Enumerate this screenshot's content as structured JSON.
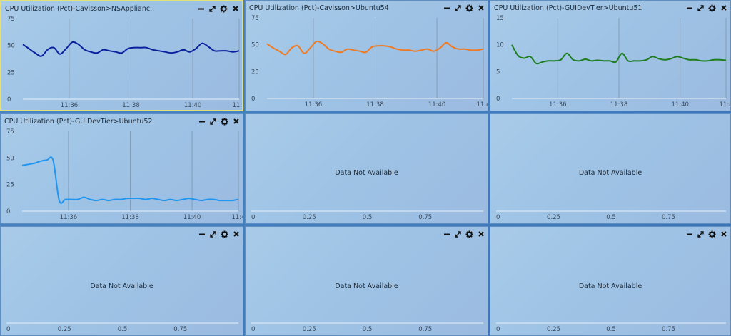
{
  "controls": {
    "minimize": "minimize-icon",
    "expand": "expand-icon",
    "settings": "gear-icon",
    "close": "close-icon"
  },
  "panels": [
    {
      "title": "CPU Utilization (Pct)-Cavisson>NSApplianc..",
      "nodata": ""
    },
    {
      "title": "CPU Utilization (Pct)-Cavisson>Ubuntu54",
      "nodata": ""
    },
    {
      "title": "CPU Utilization (Pct)-GUIDevTier>Ubuntu51",
      "nodata": ""
    },
    {
      "title": "CPU Utilization (Pct)-GUIDevTier>Ubuntu52",
      "nodata": ""
    },
    {
      "title": "",
      "nodata": "Data Not Available"
    },
    {
      "title": "",
      "nodata": "Data Not Available"
    },
    {
      "title": "",
      "nodata": "Data Not Available"
    },
    {
      "title": "",
      "nodata": "Data Not Available"
    },
    {
      "title": "",
      "nodata": "Data Not Available"
    }
  ],
  "chart_data": [
    {
      "type": "line",
      "title": "CPU Utilization (Pct)-Cavisson>NSApplianc..",
      "color": "#0a1f9e",
      "x_ticks": [
        "11:36",
        "11:38",
        "11:40",
        "11:4"
      ],
      "ylim": [
        0,
        75
      ],
      "y_ticks": [
        "0",
        "25",
        "50",
        "75"
      ],
      "x": [
        0,
        0.4,
        0.8,
        1.2,
        1.6,
        2.0,
        2.4,
        2.8,
        3.2,
        3.6,
        4.0,
        4.4,
        4.8,
        5.2,
        5.6,
        6.0,
        6.4,
        6.8,
        7.2,
        7.6,
        8.0,
        8.4,
        8.8,
        9.2,
        9.6,
        10.0,
        10.4,
        10.8,
        11.2,
        11.6,
        12.0,
        12.4,
        12.8,
        13.2,
        13.6,
        14.0
      ],
      "values": [
        51,
        47,
        43,
        40,
        46,
        48,
        42,
        47,
        53,
        51,
        46,
        44,
        43,
        46,
        45,
        44,
        43,
        47,
        48,
        48,
        48,
        46,
        45,
        44,
        43,
        44,
        46,
        44,
        47,
        52,
        49,
        45,
        45,
        45,
        44,
        45
      ]
    },
    {
      "type": "line",
      "title": "CPU Utilization (Pct)-Cavisson>Ubuntu54",
      "color": "#f07a22",
      "x_ticks": [
        "11:36",
        "11:38",
        "11:40",
        "11:4"
      ],
      "ylim": [
        0,
        75
      ],
      "y_ticks": [
        "0",
        "25",
        "50",
        "75"
      ],
      "x": [
        0,
        0.4,
        0.8,
        1.2,
        1.6,
        2.0,
        2.4,
        2.8,
        3.2,
        3.6,
        4.0,
        4.4,
        4.8,
        5.2,
        5.6,
        6.0,
        6.4,
        6.8,
        7.2,
        7.6,
        8.0,
        8.4,
        8.8,
        9.2,
        9.6,
        10.0,
        10.4,
        10.8,
        11.2,
        11.6,
        12.0,
        12.4,
        12.8,
        13.2,
        13.6,
        14.0
      ],
      "values": [
        51,
        47,
        44,
        41,
        47,
        49,
        42,
        47,
        53,
        51,
        46,
        44,
        43,
        46,
        45,
        44,
        43,
        48,
        49,
        49,
        48,
        46,
        45,
        45,
        44,
        45,
        46,
        44,
        47,
        52,
        48,
        46,
        46,
        45,
        45,
        46
      ]
    },
    {
      "type": "line",
      "title": "CPU Utilization (Pct)-GUIDevTier>Ubuntu51",
      "color": "#1e7d1e",
      "x_ticks": [
        "11:36",
        "11:38",
        "11:40",
        "11:4"
      ],
      "ylim": [
        0,
        15
      ],
      "y_ticks": [
        "0",
        "5",
        "10",
        "15"
      ],
      "x": [
        0,
        0.4,
        0.8,
        1.2,
        1.6,
        2.0,
        2.4,
        2.8,
        3.2,
        3.6,
        4.0,
        4.4,
        4.8,
        5.2,
        5.6,
        6.0,
        6.4,
        6.8,
        7.2,
        7.6,
        8.0,
        8.4,
        8.8,
        9.2,
        9.6,
        10.0,
        10.4,
        10.8,
        11.2,
        11.6,
        12.0,
        12.4,
        12.8,
        13.2,
        13.6,
        14.0
      ],
      "values": [
        10,
        8,
        7.5,
        7.8,
        6.5,
        6.8,
        7,
        7,
        7.2,
        8.4,
        7.2,
        7,
        7.3,
        7,
        7.1,
        7,
        7,
        6.8,
        8.4,
        7,
        7,
        7,
        7.2,
        7.8,
        7.4,
        7.2,
        7.4,
        7.8,
        7.5,
        7.2,
        7.2,
        7,
        7,
        7.2,
        7.2,
        7.1
      ]
    },
    {
      "type": "line",
      "title": "CPU Utilization (Pct)-GUIDevTier>Ubuntu52",
      "color": "#2196f0",
      "x_ticks": [
        "11:36",
        "11:38",
        "11:40",
        "11:4"
      ],
      "ylim": [
        0,
        75
      ],
      "y_ticks": [
        "0",
        "25",
        "50",
        "75"
      ],
      "x": [
        0,
        0.4,
        0.8,
        1.2,
        1.6,
        2.0,
        2.4,
        2.8,
        3.2,
        3.6,
        4.0,
        4.4,
        4.8,
        5.2,
        5.6,
        6.0,
        6.4,
        6.8,
        7.2,
        7.6,
        8.0,
        8.4,
        8.8,
        9.2,
        9.6,
        10.0,
        10.4,
        10.8,
        11.2,
        11.6,
        12.0,
        12.4,
        12.8,
        13.2,
        13.6,
        14.0
      ],
      "values": [
        43,
        44,
        45,
        47,
        48,
        48,
        10,
        11,
        11,
        11,
        13,
        11,
        10,
        11,
        10,
        11,
        11,
        12,
        12,
        12,
        11,
        12,
        11,
        10,
        11,
        10,
        11,
        12,
        11,
        10,
        11,
        11,
        10,
        10,
        10,
        11
      ]
    },
    {
      "type": "line",
      "x_ticks": [
        "0",
        "0.25",
        "0.5",
        "0.75"
      ],
      "values": []
    },
    {
      "type": "line",
      "x_ticks": [
        "0",
        "0.25",
        "0.5",
        "0.75"
      ],
      "values": []
    },
    {
      "type": "line",
      "x_ticks": [
        "0",
        "0.25",
        "0.5",
        "0.75"
      ],
      "values": []
    },
    {
      "type": "line",
      "x_ticks": [
        "0",
        "0.25",
        "0.5",
        "0.75"
      ],
      "values": []
    },
    {
      "type": "line",
      "x_ticks": [
        "0",
        "0.25",
        "0.5",
        "0.75"
      ],
      "values": []
    }
  ]
}
